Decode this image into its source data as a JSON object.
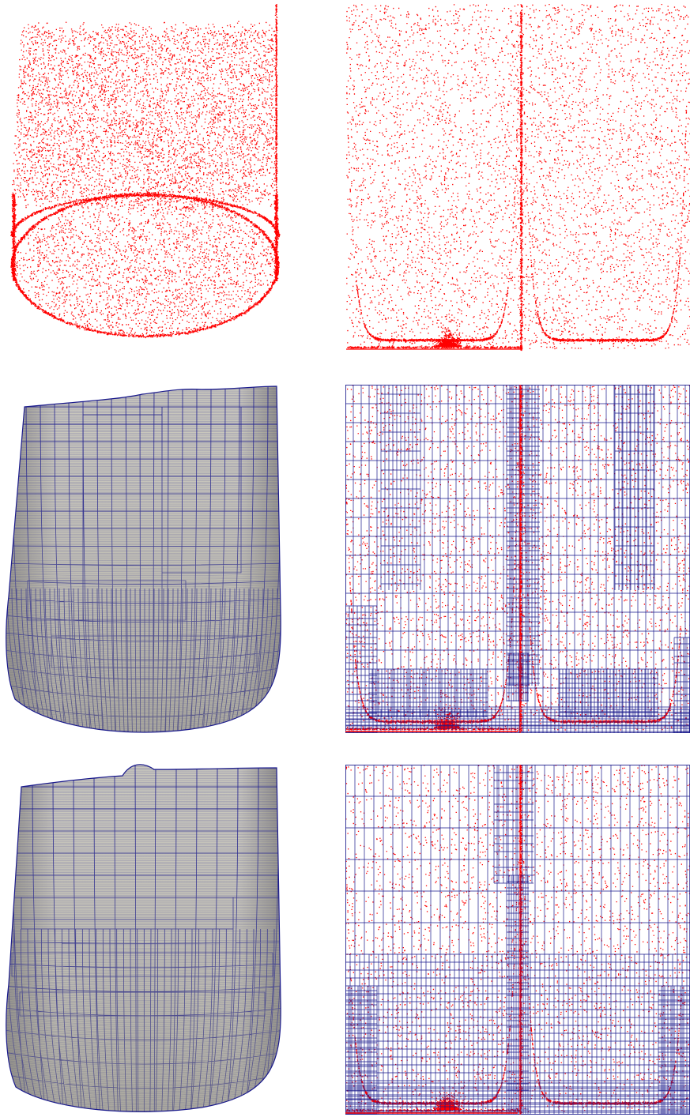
{
  "figure": {
    "panels": [
      {
        "id": "cloud-3d",
        "kind": "point-cloud-3d"
      },
      {
        "id": "cloud-2d",
        "kind": "point-cloud-parameter-domain"
      },
      {
        "id": "mesh-3d-a",
        "kind": "quad-mesh-surface"
      },
      {
        "id": "mesh-2d-a",
        "kind": "quad-mesh-parameter-domain",
        "refinement": "fine"
      },
      {
        "id": "mesh-3d-b",
        "kind": "quad-mesh-surface"
      },
      {
        "id": "mesh-2d-b",
        "kind": "quad-mesh-parameter-domain",
        "refinement": "coarse"
      }
    ]
  },
  "colors": {
    "points": "#ff0000",
    "mesh_lines": "#1a1a8c",
    "surface": "#c9c7bd",
    "surface_shade": "#8f8d85",
    "background": "#ffffff"
  }
}
